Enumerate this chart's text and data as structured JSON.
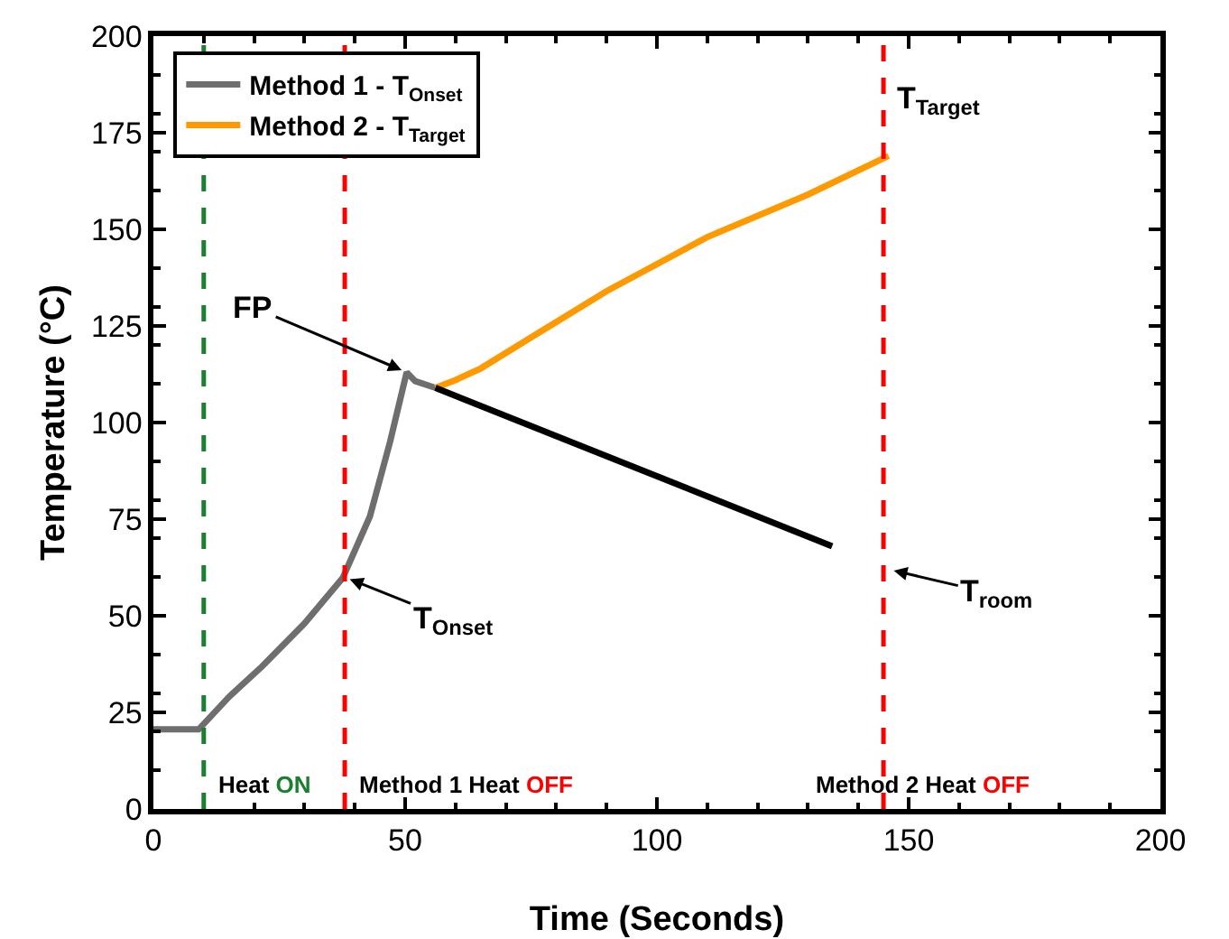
{
  "chart_data": {
    "type": "line",
    "xlabel": "Time (Seconds)",
    "ylabel": "Temperature (°C)",
    "xlim": [
      0,
      200
    ],
    "xticks": [
      0,
      50,
      100,
      150,
      200
    ],
    "ylim": [
      0,
      200
    ],
    "yticks": [
      0,
      25,
      50,
      75,
      100,
      125,
      150,
      175,
      200
    ],
    "grid": false,
    "legend": "top left",
    "line_style": "solid",
    "marker": "none",
    "series": [
      {
        "name": "Method 1 - T$_{Onset}$",
        "color": "#6e6e6e",
        "x": [
          0,
          9,
          15,
          21.6,
          30,
          37.6,
          43,
          47,
          50.3,
          52,
          56
        ],
        "values": [
          20.6,
          20.6,
          29,
          36.9,
          48,
          59.8,
          75.7,
          95,
          113,
          110.7,
          109
        ]
      },
      {
        "name": "Method 2 - T$_{Target}$",
        "color": "#ff9900",
        "x": [
          56,
          60,
          65,
          75,
          90,
          110,
          130,
          146
        ],
        "values": [
          109,
          111,
          114,
          122,
          134,
          148,
          159,
          169
        ]
      },
      {
        "color": "#000000",
        "x": [
          56,
          134.8
        ],
        "values": [
          109,
          68
        ]
      }
    ],
    "ref_lines": [
      {
        "axis": "x",
        "value": 10,
        "label": "Heat ON",
        "color": "#1a7f2e",
        "line_style": "dashed"
      },
      {
        "axis": "x",
        "value": 38,
        "label": "Method 1 Heat OFF",
        "color": "#ff0000",
        "line_style": "dashed"
      },
      {
        "axis": "x",
        "value": 145,
        "label": "Method 2 Heat OFF",
        "color": "#ff0000",
        "line_style": "dashed"
      }
    ],
    "annotations": [
      {
        "text": "FP",
        "x": 50.3,
        "y": 113
      },
      {
        "text": "T$_{Onset}$",
        "x": 38,
        "y": 60
      },
      {
        "text": "T$_{room}$",
        "x": 146,
        "y": 62
      },
      {
        "text": "T$_{Target}$",
        "x": 146,
        "y": 169
      }
    ]
  }
}
